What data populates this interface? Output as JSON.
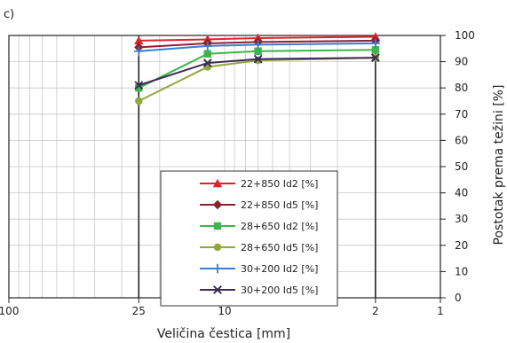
{
  "chart_data": {
    "type": "line",
    "panel_label": "c)",
    "xlabel": "Veličina čestica [mm]",
    "ylabel": "Postotak prema težini [%]",
    "x_scale": "log",
    "x_reversed": true,
    "xlim": [
      100,
      1
    ],
    "ylim": [
      0,
      100
    ],
    "x_ticks": [
      100,
      25,
      10,
      2,
      1
    ],
    "y_ticks": [
      0,
      10,
      20,
      30,
      40,
      50,
      60,
      70,
      80,
      90,
      100
    ],
    "grid": true,
    "legend_position": "bottom-center",
    "x": [
      25,
      12,
      7,
      2
    ],
    "series": [
      {
        "name": "22+850 Id2 [%]",
        "color": "#d9262b",
        "marker": "triangle",
        "values": [
          98,
          98.5,
          99,
          99.5
        ]
      },
      {
        "name": "22+850 Id5 [%]",
        "color": "#8e1f2f",
        "marker": "diamond",
        "values": [
          95.5,
          97,
          97.5,
          98
        ]
      },
      {
        "name": "28+650 Id2 [%]",
        "color": "#3db54a",
        "marker": "square",
        "values": [
          80,
          93,
          94,
          94.5
        ]
      },
      {
        "name": "28+650 Id5 [%]",
        "color": "#8fa83a",
        "marker": "circle",
        "values": [
          75,
          88,
          90.5,
          91.5
        ]
      },
      {
        "name": "30+200 Id2 [%]",
        "color": "#3a7fd0",
        "marker": "plus",
        "values": [
          94,
          96,
          96.5,
          97
        ]
      },
      {
        "name": "30+200 Id5 [%]",
        "color": "#3d2c55",
        "marker": "x",
        "values": [
          81,
          89.5,
          91,
          91.5
        ]
      }
    ]
  }
}
